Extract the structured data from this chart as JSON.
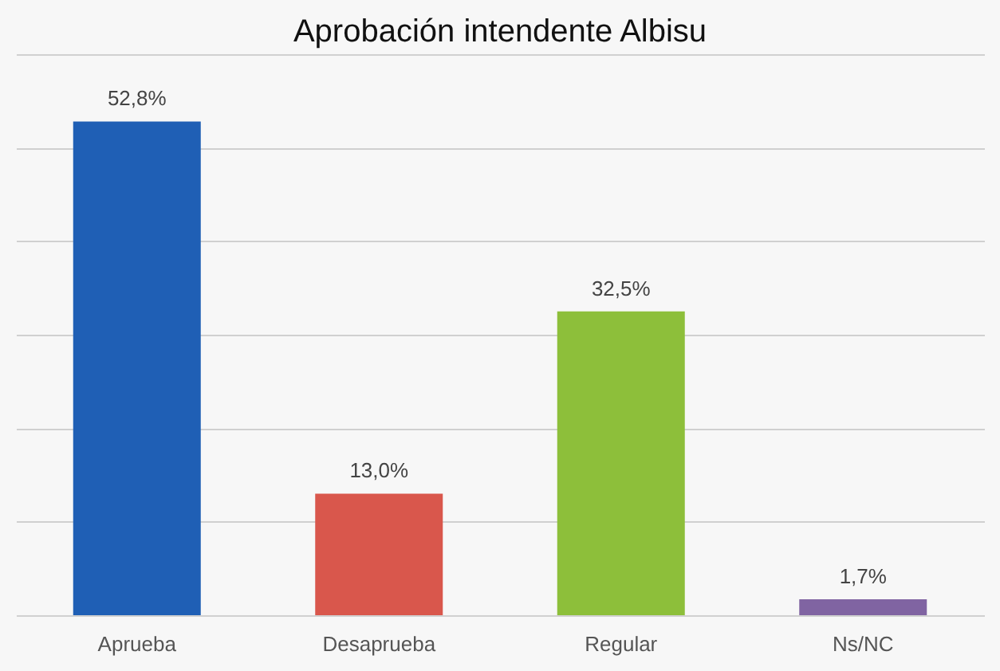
{
  "chart_data": {
    "type": "bar",
    "title": "Aprobación intendente Albisu",
    "categories": [
      "Aprueba",
      "Desaprueba",
      "Regular",
      "Ns/NC"
    ],
    "values": [
      52.8,
      13.0,
      32.5,
      1.7
    ],
    "colors": [
      "#1f5fb5",
      "#d9574c",
      "#8dbf3a",
      "#8064a2"
    ],
    "value_labels": [
      "52,8%",
      "13,0%",
      "32,5%",
      "1,7%"
    ],
    "ylim": [
      0,
      60
    ],
    "yticks": [
      {
        "value": 0,
        "label": null
      },
      {
        "value": 10,
        "label": null
      },
      {
        "value": 20,
        "label": null
      },
      {
        "value": 30,
        "label": null
      },
      {
        "value": 40,
        "label": null
      },
      {
        "value": 50,
        "label": null
      },
      {
        "value": 60,
        "label": null
      }
    ],
    "grid": "y",
    "tick_labels": "x"
  }
}
